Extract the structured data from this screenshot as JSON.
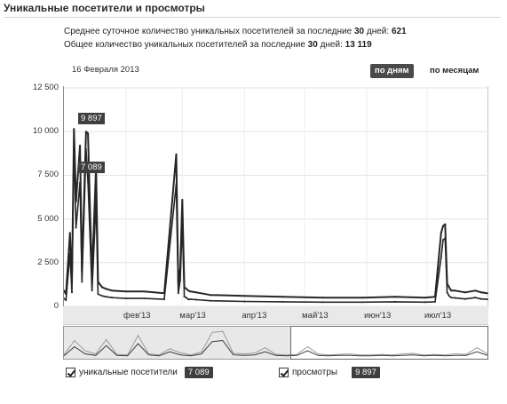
{
  "header": {
    "title": "Уникальные посетители и просмотры"
  },
  "summary": {
    "avg_daily_label": "Среднее суточное количество уникальных посетителей за последние",
    "avg_daily_days": "30",
    "avg_daily_unit": "дней:",
    "avg_daily_value": "621",
    "total_label": "Общее количество уникальных посетителей за последние",
    "total_days": "30",
    "total_unit": "дней:",
    "total_value": "13 119"
  },
  "toolbar": {
    "date": "16 Февраля 2013",
    "by_day": "по дням",
    "by_month": "по месяцам"
  },
  "legend": {
    "visitors_label": "уникальные посетители",
    "visitors_value": "7 089",
    "views_label": "просмотры",
    "views_value": "9 897"
  },
  "callouts": {
    "views_peak": "9 897",
    "visitors_peak": "7 089"
  },
  "colors": {
    "line": "#262626",
    "badge": "#3f3f3f",
    "grid": "#e3e3e3"
  },
  "chart_data": {
    "type": "line",
    "ylim": [
      0,
      12500
    ],
    "yticks": [
      "0",
      "2 500",
      "5 000",
      "7 500",
      "10 000",
      "12 500"
    ],
    "ytick_values": [
      0,
      2500,
      5000,
      7500,
      10000,
      12500
    ],
    "xtick_labels": [
      "фев'13",
      "мар'13",
      "апр'13",
      "май'13",
      "июн'13",
      "июл'13"
    ],
    "grid": true,
    "x": [
      "2013-01-01",
      "2013-01-02",
      "2013-01-04",
      "2013-01-05",
      "2013-01-06",
      "2013-01-07",
      "2013-01-09",
      "2013-01-10",
      "2013-01-12",
      "2013-01-13",
      "2013-01-14",
      "2013-01-15",
      "2013-01-17",
      "2013-01-18",
      "2013-01-20",
      "2013-01-22",
      "2013-01-25",
      "2013-02-01",
      "2013-02-10",
      "2013-02-20",
      "2013-02-26",
      "2013-02-27",
      "2013-02-28",
      "2013-03-01",
      "2013-03-02",
      "2013-03-03",
      "2013-03-04",
      "2013-03-05",
      "2013-03-08",
      "2013-03-15",
      "2013-04-01",
      "2013-04-20",
      "2013-05-10",
      "2013-05-30",
      "2013-06-15",
      "2013-06-30",
      "2013-07-05",
      "2013-07-08",
      "2013-07-09",
      "2013-07-10",
      "2013-07-11",
      "2013-07-12",
      "2013-07-13",
      "2013-07-15",
      "2013-07-20",
      "2013-07-25",
      "2013-07-28",
      "2013-07-31"
    ],
    "series": [
      {
        "name": "просмотры",
        "values": [
          900,
          700,
          4200,
          1300,
          10150,
          6000,
          9200,
          2000,
          10000,
          9897,
          5500,
          1800,
          8000,
          1400,
          1100,
          1000,
          900,
          850,
          850,
          750,
          8700,
          1300,
          2200,
          6100,
          1100,
          1000,
          900,
          850,
          800,
          650,
          600,
          550,
          500,
          500,
          550,
          500,
          550,
          4200,
          4600,
          4700,
          1300,
          1100,
          900,
          900,
          800,
          900,
          800,
          750
        ]
      },
      {
        "name": "уникальные посетители",
        "values": [
          450,
          350,
          3000,
          800,
          9300,
          4500,
          7089,
          1400,
          9000,
          7089,
          4000,
          900,
          6000,
          700,
          600,
          550,
          500,
          450,
          450,
          400,
          7000,
          750,
          1500,
          4800,
          550,
          500,
          400,
          400,
          380,
          320,
          280,
          260,
          240,
          240,
          260,
          240,
          260,
          2800,
          3800,
          3900,
          800,
          600,
          500,
          480,
          420,
          500,
          420,
          400
        ]
      }
    ],
    "navigator_views": [
      200,
      1600,
      600,
      300,
      1700,
      250,
      200,
      2100,
      300,
      200,
      800,
      400,
      200,
      500,
      2400,
      2500,
      350,
      300,
      380,
      900,
      250,
      200,
      250,
      1000,
      300,
      200,
      250,
      300,
      200,
      200,
      250,
      200,
      300,
      350,
      200,
      250,
      200,
      300,
      250,
      900,
      300
    ],
    "navigator_visitors": [
      100,
      1000,
      300,
      150,
      1100,
      150,
      100,
      1300,
      200,
      100,
      500,
      200,
      100,
      300,
      1500,
      1600,
      200,
      150,
      200,
      500,
      150,
      100,
      150,
      600,
      150,
      100,
      150,
      150,
      100,
      100,
      150,
      100,
      150,
      200,
      100,
      150,
      100,
      150,
      150,
      500,
      150
    ]
  }
}
